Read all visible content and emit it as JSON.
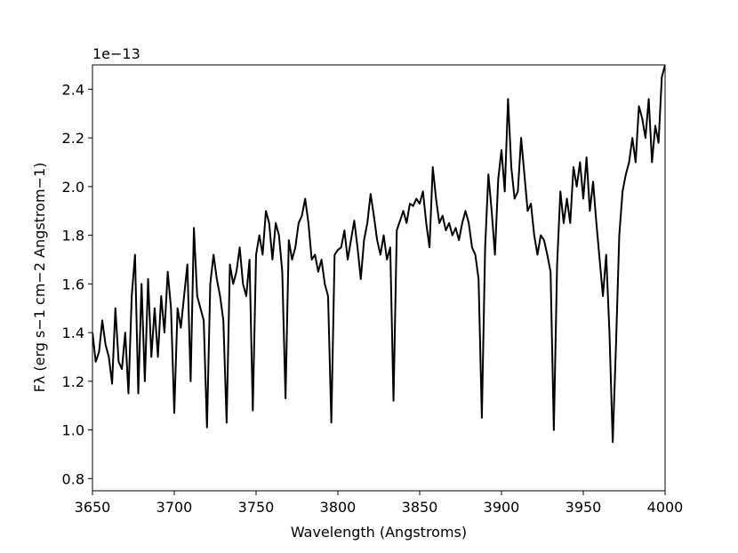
{
  "chart_data": {
    "type": "line",
    "xlabel": "Wavelength (Angstroms)",
    "ylabel": "Fλ (erg s−1 cm−2 Angstrom−1)",
    "y_offset_label": "1e−13",
    "xlim": [
      3650,
      4000
    ],
    "ylim": [
      0.75,
      2.5
    ],
    "xticks": [
      3650,
      3700,
      3750,
      3800,
      3850,
      3900,
      3950,
      4000
    ],
    "yticks": [
      0.8,
      {
        "value": 1,
        "label": "1.0"
      },
      1.2,
      1.4,
      1.6,
      1.8,
      {
        "value": 2,
        "label": "2.0"
      },
      2.2,
      2.4
    ],
    "x": [
      3650,
      3652,
      3654,
      3656,
      3658,
      3660,
      3662,
      3664,
      3666,
      3668,
      3670,
      3672,
      3674,
      3676,
      3678,
      3680,
      3682,
      3684,
      3686,
      3688,
      3690,
      3692,
      3694,
      3696,
      3698,
      3700,
      3702,
      3704,
      3706,
      3708,
      3710,
      3712,
      3714,
      3716,
      3718,
      3720,
      3722,
      3724,
      3726,
      3728,
      3730,
      3732,
      3734,
      3736,
      3738,
      3740,
      3742,
      3744,
      3746,
      3748,
      3750,
      3752,
      3754,
      3756,
      3758,
      3760,
      3762,
      3764,
      3766,
      3768,
      3770,
      3772,
      3774,
      3776,
      3778,
      3780,
      3782,
      3784,
      3786,
      3788,
      3790,
      3792,
      3794,
      3796,
      3798,
      3800,
      3802,
      3804,
      3806,
      3808,
      3810,
      3812,
      3814,
      3816,
      3818,
      3820,
      3822,
      3824,
      3826,
      3828,
      3830,
      3832,
      3834,
      3836,
      3838,
      3840,
      3842,
      3844,
      3846,
      3848,
      3850,
      3852,
      3854,
      3856,
      3858,
      3860,
      3862,
      3864,
      3866,
      3868,
      3870,
      3872,
      3874,
      3876,
      3878,
      3880,
      3882,
      3884,
      3886,
      3888,
      3890,
      3892,
      3894,
      3896,
      3898,
      3900,
      3902,
      3904,
      3906,
      3908,
      3910,
      3912,
      3914,
      3916,
      3918,
      3920,
      3922,
      3924,
      3926,
      3928,
      3930,
      3932,
      3934,
      3936,
      3938,
      3940,
      3942,
      3944,
      3946,
      3948,
      3950,
      3952,
      3954,
      3956,
      3958,
      3960,
      3962,
      3964,
      3966,
      3968,
      3970,
      3972,
      3974,
      3976,
      3978,
      3980,
      3982,
      3984,
      3986,
      3988,
      3990,
      3992,
      3994,
      3996,
      3998,
      4000
    ],
    "series": [
      {
        "color": "#000000",
        "values": [
          1.4,
          1.28,
          1.32,
          1.45,
          1.35,
          1.3,
          1.19,
          1.5,
          1.28,
          1.25,
          1.4,
          1.15,
          1.55,
          1.72,
          1.15,
          1.6,
          1.2,
          1.62,
          1.3,
          1.5,
          1.3,
          1.55,
          1.4,
          1.65,
          1.5,
          1.07,
          1.5,
          1.42,
          1.55,
          1.68,
          1.2,
          1.83,
          1.55,
          1.5,
          1.45,
          1.01,
          1.6,
          1.72,
          1.62,
          1.55,
          1.45,
          1.03,
          1.68,
          1.6,
          1.65,
          1.75,
          1.6,
          1.55,
          1.7,
          1.08,
          1.72,
          1.8,
          1.72,
          1.9,
          1.85,
          1.7,
          1.85,
          1.8,
          1.65,
          1.13,
          1.78,
          1.7,
          1.75,
          1.85,
          1.88,
          1.95,
          1.85,
          1.7,
          1.72,
          1.65,
          1.7,
          1.6,
          1.55,
          1.03,
          1.72,
          1.74,
          1.75,
          1.82,
          1.7,
          1.78,
          1.86,
          1.75,
          1.62,
          1.78,
          1.85,
          1.97,
          1.88,
          1.78,
          1.72,
          1.8,
          1.7,
          1.75,
          1.12,
          1.82,
          1.86,
          1.9,
          1.85,
          1.93,
          1.92,
          1.95,
          1.93,
          1.98,
          1.85,
          1.75,
          2.08,
          1.95,
          1.85,
          1.88,
          1.82,
          1.85,
          1.8,
          1.83,
          1.78,
          1.85,
          1.9,
          1.85,
          1.75,
          1.72,
          1.62,
          1.05,
          1.75,
          2.05,
          1.9,
          1.72,
          2.03,
          2.15,
          1.98,
          2.36,
          2.08,
          1.95,
          1.98,
          2.2,
          2.05,
          1.9,
          1.93,
          1.8,
          1.72,
          1.8,
          1.78,
          1.72,
          1.65,
          1.0,
          1.68,
          1.98,
          1.85,
          1.95,
          1.85,
          2.08,
          2.0,
          2.1,
          1.95,
          2.12,
          1.9,
          2.02,
          1.85,
          1.7,
          1.55,
          1.72,
          1.4,
          0.95,
          1.35,
          1.8,
          1.98,
          2.05,
          2.1,
          2.2,
          2.1,
          2.33,
          2.28,
          2.2,
          2.36,
          2.1,
          2.25,
          2.18,
          2.45,
          2.5
        ]
      }
    ]
  }
}
